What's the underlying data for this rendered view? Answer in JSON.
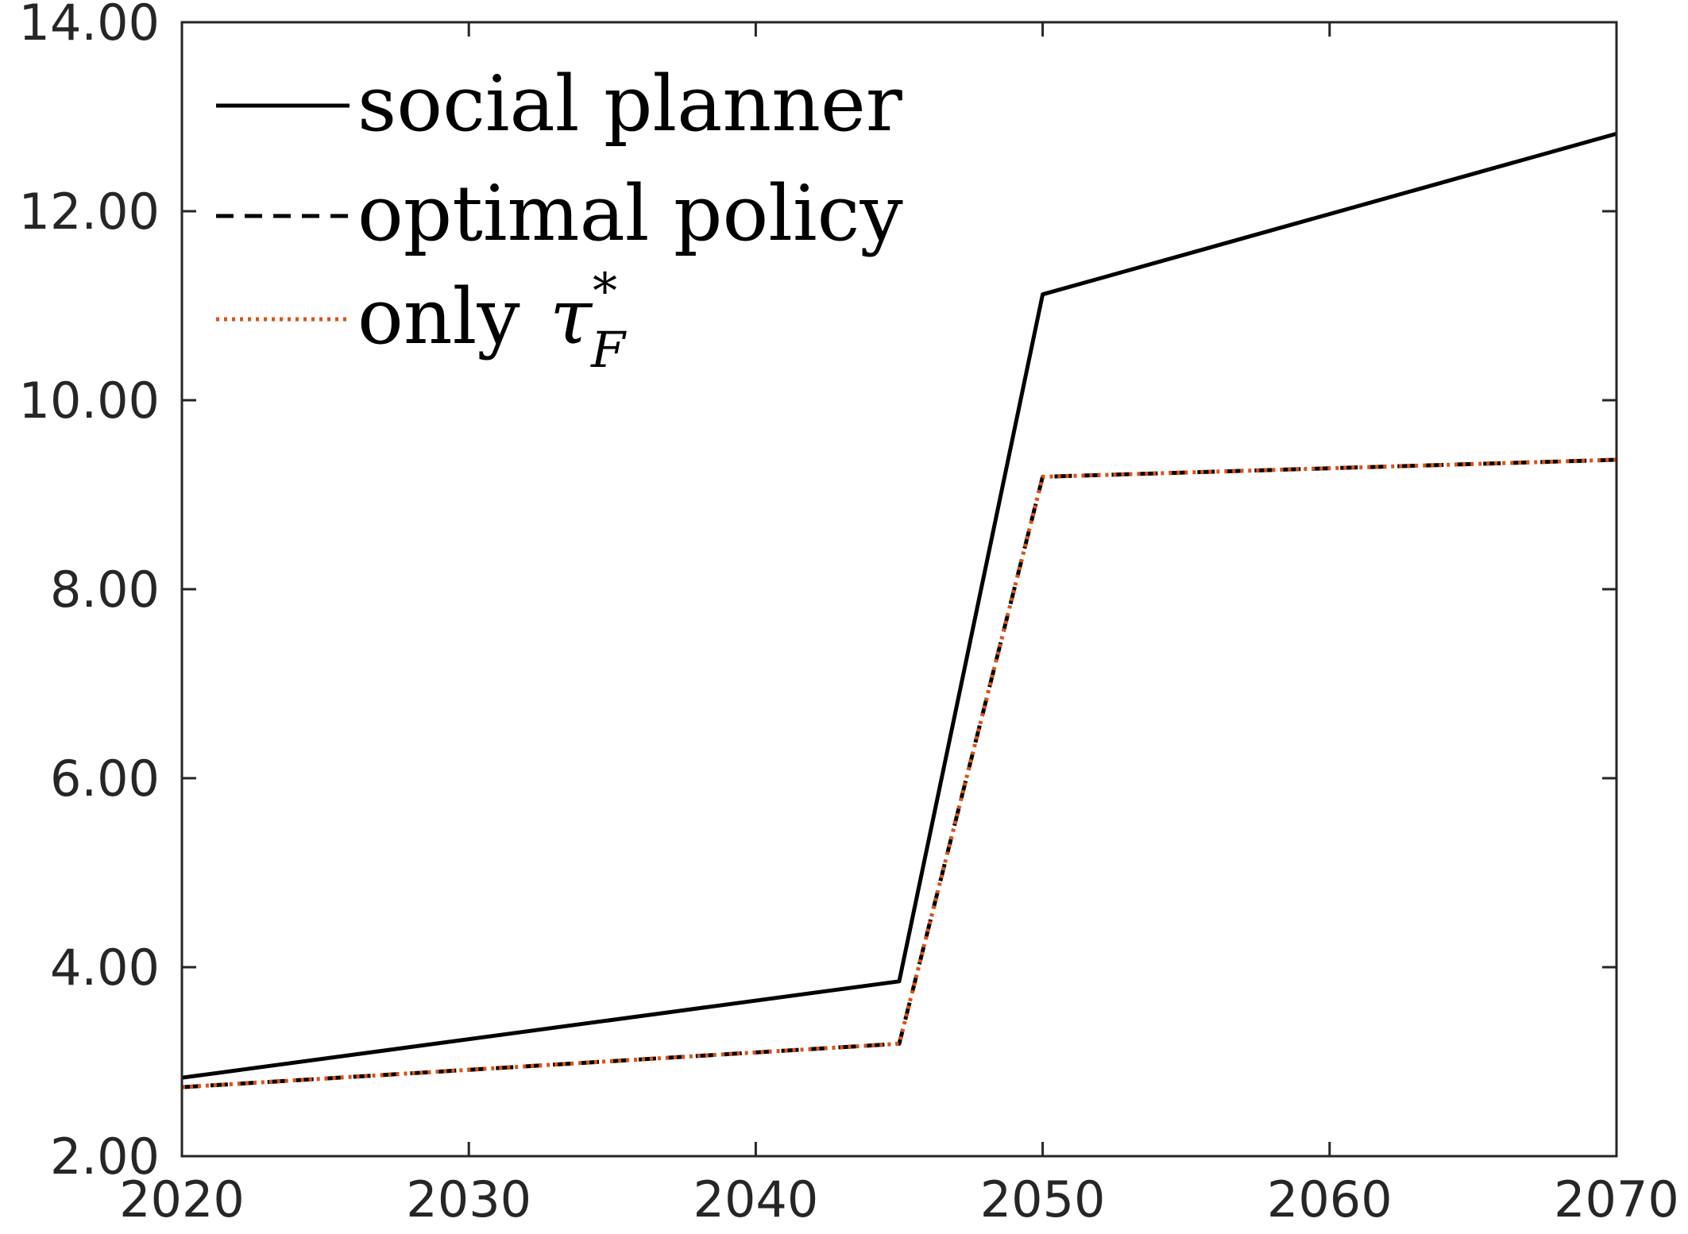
{
  "chart_data": {
    "type": "line",
    "title": "",
    "xlabel": "",
    "ylabel": "",
    "x": [
      2020,
      2045,
      2050,
      2070
    ],
    "xlim": [
      2020,
      2070
    ],
    "ylim": [
      2,
      14
    ],
    "xticks": [
      2020,
      2030,
      2040,
      2050,
      2060,
      2070
    ],
    "yticks": [
      2,
      4,
      6,
      8,
      10,
      12,
      14
    ],
    "xtick_labels": [
      "2020",
      "2030",
      "2040",
      "2050",
      "2060",
      "2070"
    ],
    "ytick_labels": [
      "2.00",
      "4.00",
      "6.00",
      "8.00",
      "10.00",
      "12.00",
      "14.00"
    ],
    "grid": false,
    "legend_position": "top-left",
    "series": [
      {
        "name": "social planner",
        "values": [
          2.83,
          3.85,
          11.12,
          12.82
        ],
        "color": "#000000",
        "style": "solid"
      },
      {
        "name": "optimal policy",
        "values": [
          2.73,
          3.19,
          9.19,
          9.37
        ],
        "color": "#000000",
        "style": "dashed"
      },
      {
        "name": "only",
        "symbol": "τ",
        "subscript": "F",
        "superscript": "*",
        "values": [
          2.73,
          3.19,
          9.19,
          9.37
        ],
        "color": "#D95319",
        "style": "dotted"
      }
    ]
  }
}
